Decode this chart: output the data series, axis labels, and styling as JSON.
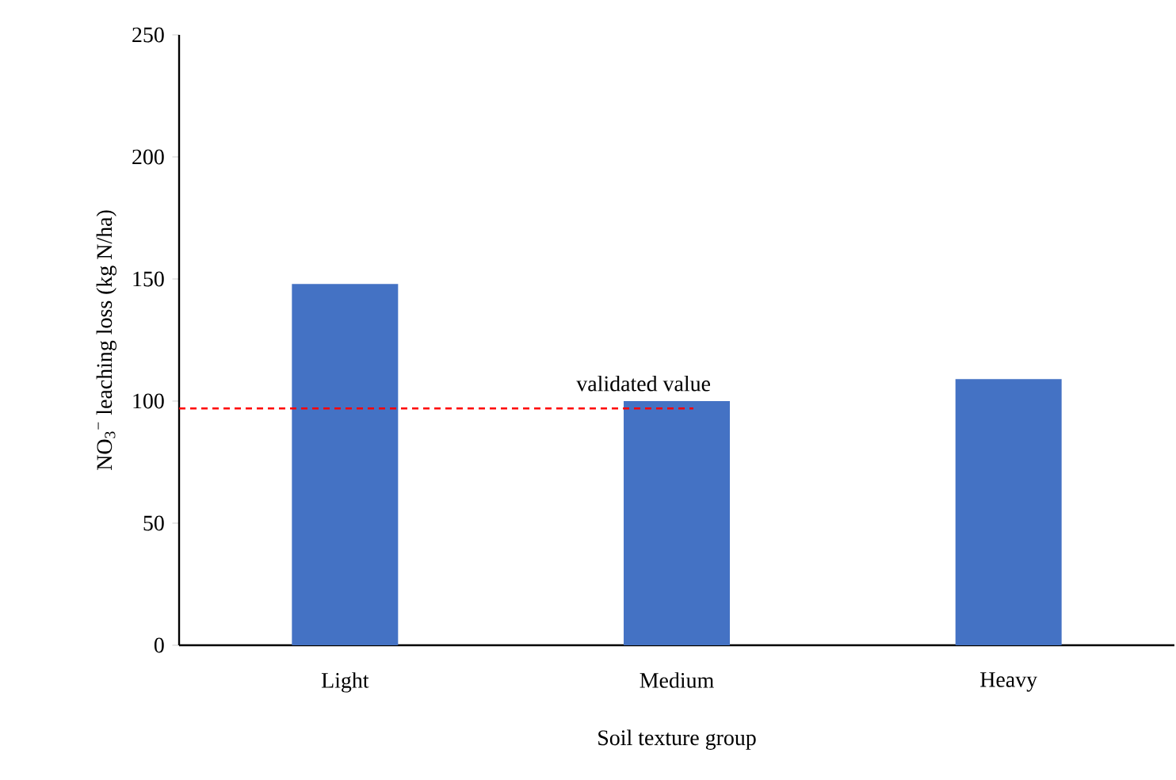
{
  "chart_data": {
    "type": "bar",
    "xlabel": "Soil texture group",
    "ylabel": "NO$_{3}$$^{−}$ leaching loss (kg N/ha)",
    "categories": [
      "Light",
      "Medium",
      "Heavy"
    ],
    "values": [
      148,
      100,
      109
    ],
    "color": "#4472c4",
    "ylim": [
      0,
      250
    ],
    "yticks": [
      0,
      50,
      100,
      150,
      200,
      250
    ],
    "ref_lines": [
      {
        "axis": "y",
        "value": 97,
        "label": "validated value",
        "color": "#ff0000",
        "line_style": "dashed"
      }
    ]
  }
}
